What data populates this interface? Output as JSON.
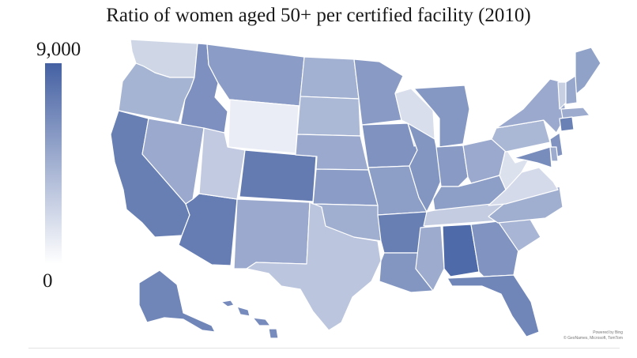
{
  "title": "Ratio of women aged 50+ per certified facility (2010)",
  "legend": {
    "max_label": "9,000",
    "min_label": "0",
    "min_value": 0,
    "max_value": 9000,
    "color_low": "#ffffff",
    "color_high": "#4561a3"
  },
  "credit": {
    "line1": "Powered by Bing",
    "line2": "© GeoNames, Microsoft, TomTom"
  },
  "colors": {
    "border": "#ffffff"
  },
  "states": [
    {
      "id": "WA",
      "value": 2300
    },
    {
      "id": "OR",
      "value": 4300
    },
    {
      "id": "CA",
      "value": 7300
    },
    {
      "id": "ID",
      "value": 6300
    },
    {
      "id": "NV",
      "value": 4900
    },
    {
      "id": "AZ",
      "value": 7400
    },
    {
      "id": "UT",
      "value": 3000
    },
    {
      "id": "MT",
      "value": 5600
    },
    {
      "id": "WY",
      "value": 1000
    },
    {
      "id": "CO",
      "value": 7500
    },
    {
      "id": "NM",
      "value": 4900
    },
    {
      "id": "TX",
      "value": 3300
    },
    {
      "id": "ND",
      "value": 4500
    },
    {
      "id": "SD",
      "value": 4000
    },
    {
      "id": "NE",
      "value": 4900
    },
    {
      "id": "KS",
      "value": 5600
    },
    {
      "id": "OK",
      "value": 4600
    },
    {
      "id": "MN",
      "value": 5700
    },
    {
      "id": "IA",
      "value": 6200
    },
    {
      "id": "MO",
      "value": 5500
    },
    {
      "id": "AR",
      "value": 7300
    },
    {
      "id": "LA",
      "value": 6000
    },
    {
      "id": "WI",
      "value": 1900
    },
    {
      "id": "IL",
      "value": 6000
    },
    {
      "id": "MI",
      "value": 5900
    },
    {
      "id": "IN",
      "value": 5700
    },
    {
      "id": "OH",
      "value": 4900
    },
    {
      "id": "KY",
      "value": 5500
    },
    {
      "id": "TN",
      "value": 2900
    },
    {
      "id": "MS",
      "value": 4800
    },
    {
      "id": "AL",
      "value": 8500
    },
    {
      "id": "GA",
      "value": 6100
    },
    {
      "id": "FL",
      "value": 6900
    },
    {
      "id": "SC",
      "value": 4200
    },
    {
      "id": "NC",
      "value": 4600
    },
    {
      "id": "VA",
      "value": 2100
    },
    {
      "id": "WV",
      "value": 1700
    },
    {
      "id": "PA",
      "value": 4100
    },
    {
      "id": "NY",
      "value": 4900
    },
    {
      "id": "ME",
      "value": 5300
    },
    {
      "id": "VT",
      "value": 2700
    },
    {
      "id": "NH",
      "value": 5000
    },
    {
      "id": "MA",
      "value": 4800
    },
    {
      "id": "CT",
      "value": 7200
    },
    {
      "id": "NJ",
      "value": 6200
    },
    {
      "id": "MD",
      "value": 6500
    },
    {
      "id": "DE",
      "value": 4800
    },
    {
      "id": "AK",
      "value": 6900
    },
    {
      "id": "HI",
      "value": 6600
    }
  ]
}
